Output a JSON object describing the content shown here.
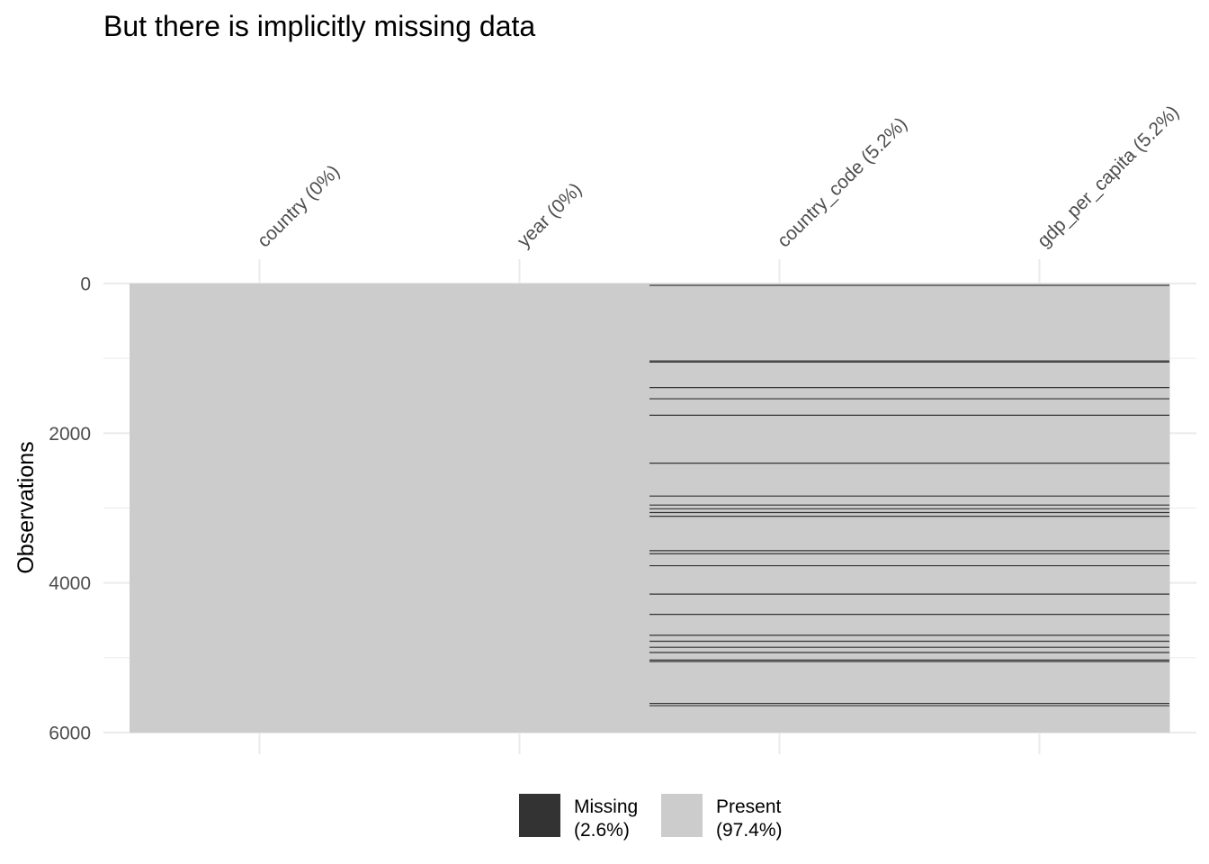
{
  "chart_data": {
    "type": "heatmap",
    "title": "But there is implicitly missing data",
    "ylabel": "Observations",
    "ylim": [
      0,
      6000
    ],
    "y_ticks": [
      0,
      2000,
      4000,
      6000
    ],
    "columns": [
      {
        "name": "country",
        "label": "country (0%)",
        "missing_pct": 0
      },
      {
        "name": "year",
        "label": "year (0%)",
        "missing_pct": 0
      },
      {
        "name": "country_code",
        "label": "country_code (5.2%)",
        "missing_pct": 5.2
      },
      {
        "name": "gdp_per_capita",
        "label": "gdp_per_capita (5.2%)",
        "missing_pct": 5.2
      }
    ],
    "missing_rows": [
      25,
      1035,
      1050,
      1390,
      1540,
      1760,
      2400,
      2840,
      2960,
      3010,
      3060,
      3110,
      3570,
      3610,
      3770,
      4150,
      4420,
      4700,
      4780,
      4860,
      4930,
      5030,
      5050,
      5610,
      5640
    ],
    "missing_rows_columns": [
      "country_code",
      "gdp_per_capita"
    ],
    "legend": [
      {
        "label": "Missing",
        "pct": "(2.6%)",
        "color": "#333333"
      },
      {
        "label": "Present",
        "pct": "(97.4%)",
        "color": "#cccccc"
      }
    ],
    "legend_position": "bottom",
    "colors": {
      "missing": "#333333",
      "present": "#cccccc",
      "grid": "#ebebeb"
    }
  }
}
